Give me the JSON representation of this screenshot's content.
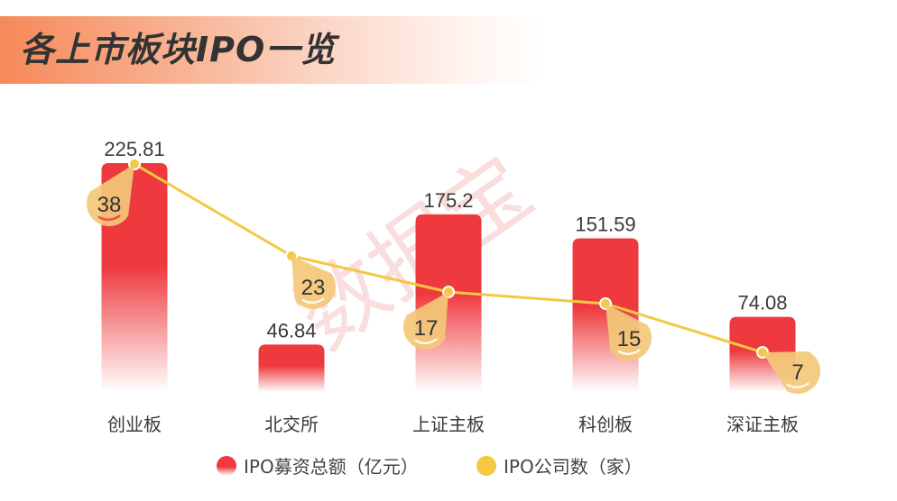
{
  "title": "各上市板块IPO一览",
  "watermark": "数据宝",
  "legend": {
    "bar_label": "IPO募资总额（亿元）",
    "line_label": "IPO公司数（家）"
  },
  "colors": {
    "bar": "#ee3a3e",
    "line": "#f5c842",
    "pin": "#f3c878",
    "title_gradient_start": "#f6895a"
  },
  "chart_data": {
    "type": "bar+line",
    "title": "各上市板块IPO一览",
    "xlabel": "",
    "ylabel": "",
    "grid": false,
    "legend_position": "bottom",
    "categories": [
      "创业板",
      "北交所",
      "上证主板",
      "科创板",
      "深证主板"
    ],
    "series": [
      {
        "name": "IPO募资总额（亿元）",
        "type": "bar",
        "values": [
          225.81,
          46.84,
          175.2,
          151.59,
          74.08
        ]
      },
      {
        "name": "IPO公司数（家）",
        "type": "line",
        "values": [
          38,
          23,
          17,
          15,
          7
        ]
      }
    ]
  },
  "labels": {
    "bars": [
      "225.81",
      "46.84",
      "175.2",
      "151.59",
      "74.08"
    ],
    "line": [
      "38",
      "23",
      "17",
      "15",
      "7"
    ]
  }
}
